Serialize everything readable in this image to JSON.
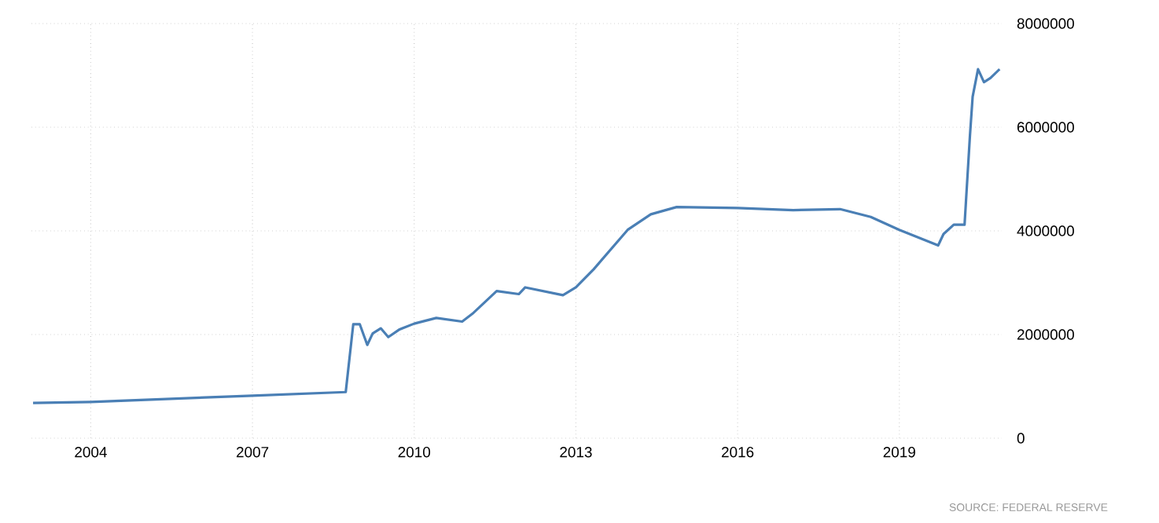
{
  "chart_data": {
    "type": "line",
    "x": [
      2002.93,
      2004,
      2007,
      2008.73,
      2008.87,
      2008.99,
      2009.13,
      2009.23,
      2009.38,
      2009.52,
      2009.73,
      2010,
      2010.41,
      2010.89,
      2011.08,
      2011.53,
      2011.94,
      2012.06,
      2012.76,
      2013,
      2013.33,
      2013.96,
      2014.39,
      2014.87,
      2016,
      2017.03,
      2017.9,
      2018.47,
      2019,
      2019.72,
      2019.82,
      2020.01,
      2020.21,
      2020.31,
      2020.36,
      2020.46,
      2020.57,
      2020.69,
      2020.86
    ],
    "series": [
      {
        "color": "#4a7fb5",
        "values": [
          680000,
          700000,
          820000,
          890000,
          2200000,
          2200000,
          1800000,
          2020000,
          2120000,
          1950000,
          2100000,
          2210000,
          2320000,
          2250000,
          2400000,
          2840000,
          2780000,
          2910000,
          2760000,
          2910000,
          3260000,
          4020000,
          4320000,
          4460000,
          4440000,
          4400000,
          4420000,
          4270000,
          4020000,
          3720000,
          3940000,
          4120000,
          4120000,
          5840000,
          6590000,
          7120000,
          6870000,
          6950000,
          7120000
        ]
      }
    ],
    "xlim": [
      2002.9,
      2020.9
    ],
    "ylim": [
      0,
      8000000
    ],
    "xticks": [
      2004,
      2007,
      2010,
      2013,
      2016,
      2019
    ],
    "yticks": [
      0,
      2000000,
      4000000,
      6000000,
      8000000
    ],
    "grid": true,
    "marker": "none",
    "annotations": [
      "SOURCE: FEDERAL RESERVE"
    ]
  }
}
